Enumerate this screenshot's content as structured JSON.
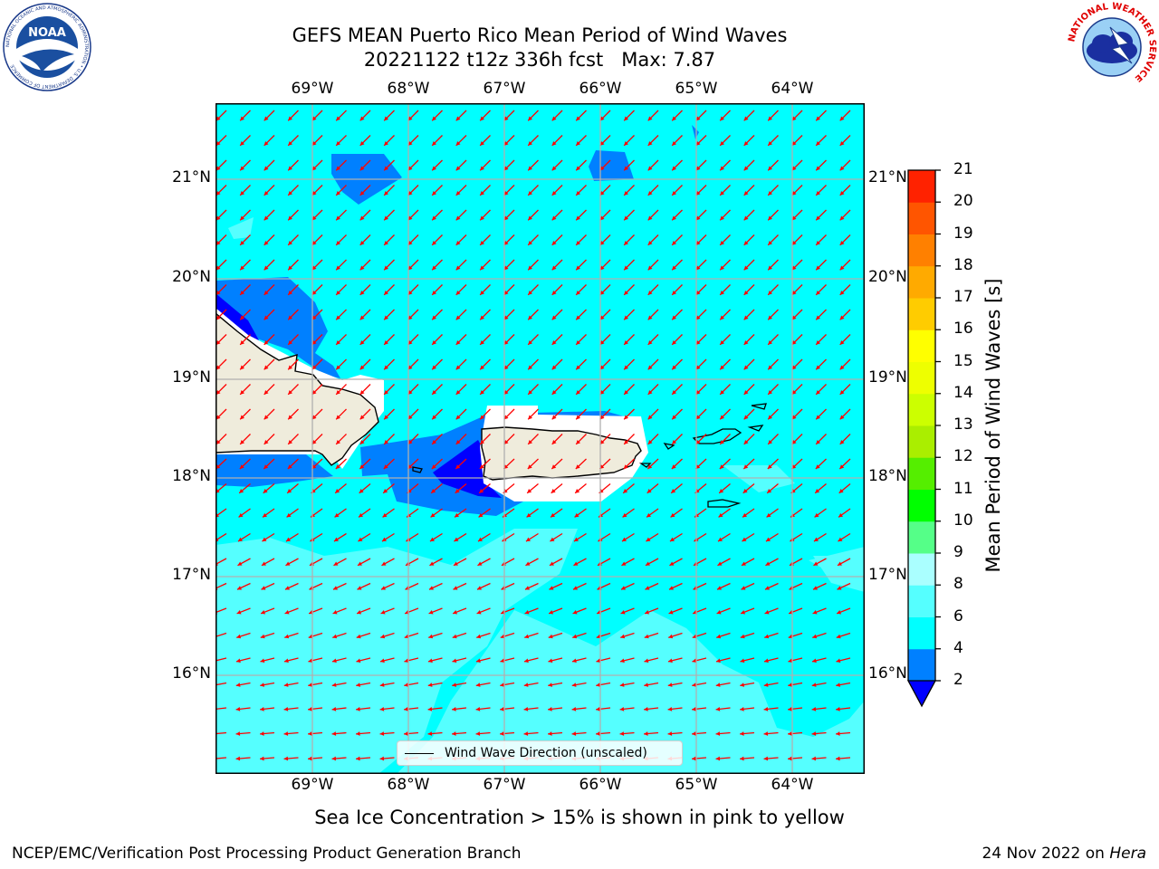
{
  "header": {
    "title_line1": "GEFS MEAN Puerto Rico Mean Period of Wind Waves",
    "title_line2": "20221122 t12z 336h fcst   Max: 7.87"
  },
  "logos": {
    "noaa_text": "NOAA",
    "noaa_ring": "NATIONAL OCEANIC AND ATMOSPHERIC ADMINISTRATION • U.S. DEPARTMENT OF COMMERCE",
    "nws_ring": "NATIONAL WEATHER SERVICE"
  },
  "map": {
    "lon_labels": [
      "69°W",
      "68°W",
      "67°W",
      "66°W",
      "65°W",
      "64°W"
    ],
    "lat_labels": [
      "21°N",
      "20°N",
      "19°N",
      "18°N",
      "17°N",
      "16°N"
    ],
    "legend_label": "Wind Wave Direction (unscaled)",
    "colors": {
      "ocean": "#00ffff",
      "light_cyan": "#55ffff",
      "blue": "#0080ff",
      "dark_blue": "#0000ff",
      "land": "#efecdc",
      "arrow": "#ff0000",
      "grid": "#b0b0b0"
    }
  },
  "colorbar": {
    "label": "Mean Period of Wind Waves [s]",
    "ticks": [
      "21",
      "20",
      "19",
      "18",
      "17",
      "16",
      "15",
      "14",
      "13",
      "12",
      "11",
      "10",
      "9",
      "8",
      "6",
      "4",
      "2"
    ],
    "levels": [
      2,
      4,
      6,
      8,
      9,
      10,
      11,
      12,
      13,
      14,
      15,
      16,
      17,
      18,
      19,
      20,
      21
    ],
    "colors": [
      "#0000ff",
      "#0080ff",
      "#00ffff",
      "#55ffff",
      "#aaffff",
      "#55ff88",
      "#00ff00",
      "#55ee00",
      "#aaee00",
      "#ccff00",
      "#eeff00",
      "#ffff00",
      "#ffcc00",
      "#ffaa00",
      "#ff8000",
      "#ff5500",
      "#ff2200",
      "#ff0000"
    ]
  },
  "subcaption": "Sea Ice Concentration > 15% is shown in pink to yellow",
  "footer": {
    "left": "NCEP/EMC/Verification Post Processing Product Generation Branch",
    "right_prefix": "24 Nov 2022 on ",
    "right_italic": "Hera"
  }
}
